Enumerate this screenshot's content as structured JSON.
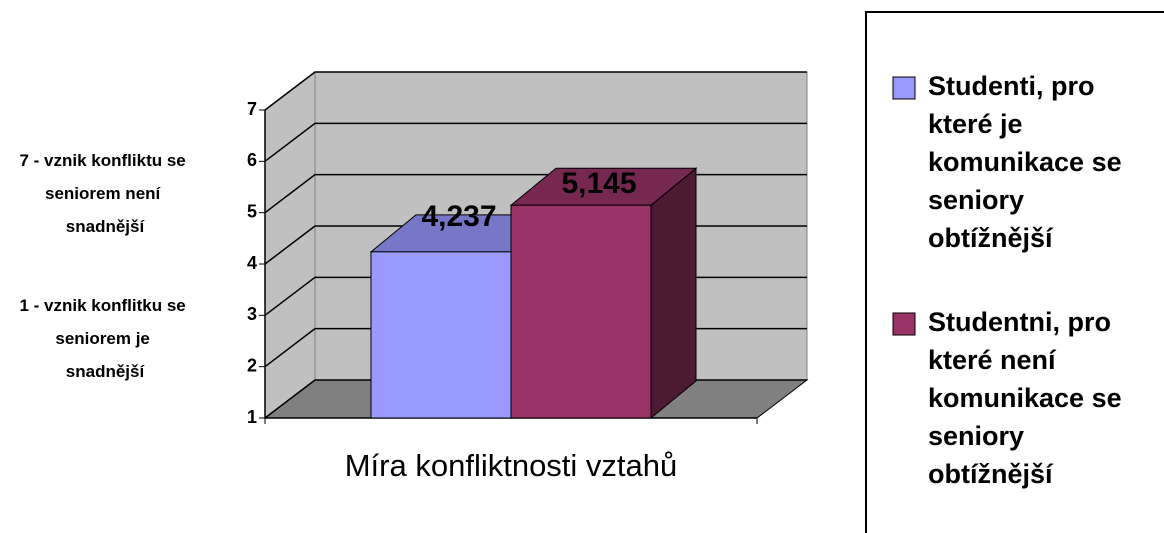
{
  "chart_data": {
    "type": "bar3d",
    "categories": [
      "Míra konfliktnosti vztahů"
    ],
    "series": [
      {
        "name": "Studenti, pro které je komunikace se seniory obtížnější",
        "color": "#9999ff",
        "values": [
          4.237
        ],
        "value_labels": [
          "4,237"
        ]
      },
      {
        "name": "Studentni, pro které není komunikace se seniory obtížnější",
        "color": "#993366",
        "values": [
          5.145
        ],
        "value_labels": [
          "5,145"
        ]
      }
    ],
    "annotations": [
      "7 - vznik konfliktu se seniorem není snadnější",
      "1 - vznik konflitku se seniorem je snadnější"
    ],
    "ylim": [
      1,
      7
    ],
    "yticks": [
      1,
      2,
      3,
      4,
      5,
      6,
      7
    ],
    "grid": true,
    "legend": "right"
  }
}
